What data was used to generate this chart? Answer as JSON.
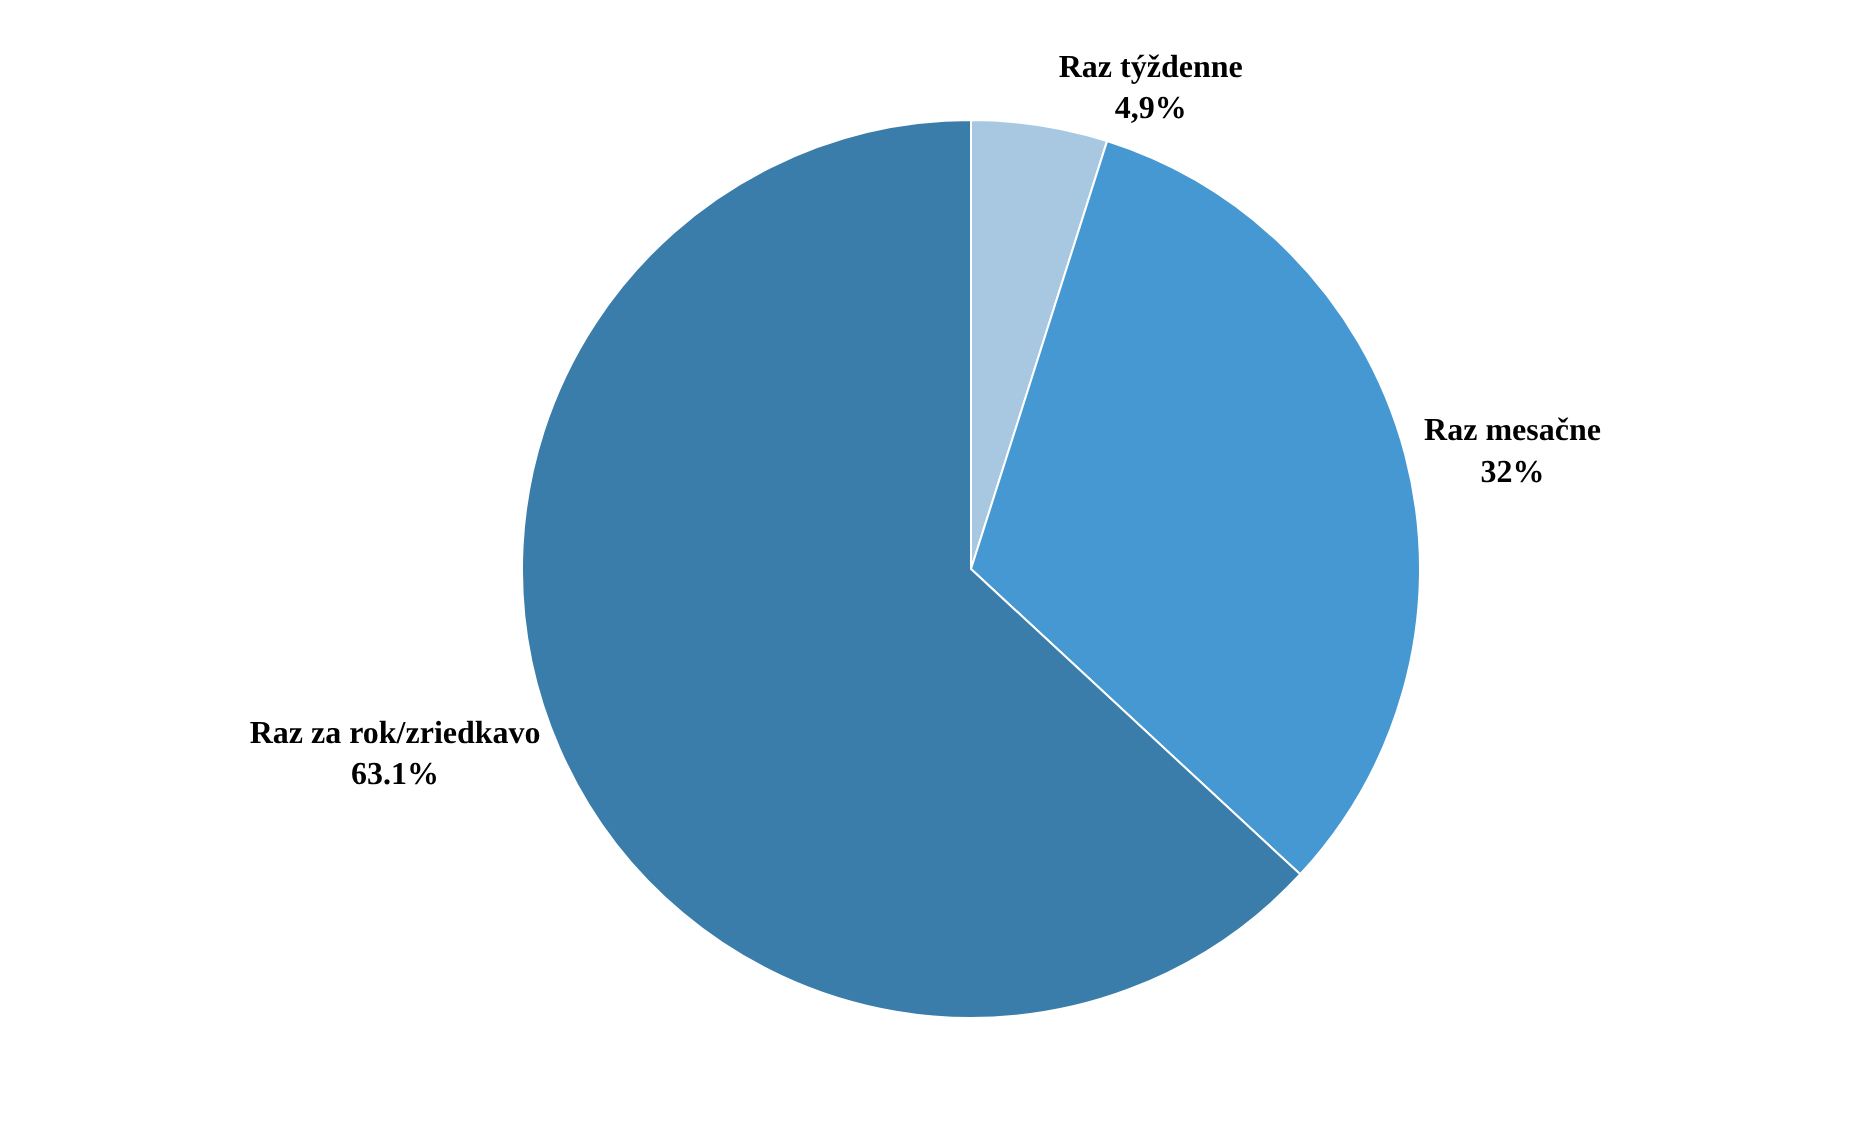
{
  "chart_data": {
    "type": "pie",
    "categories": [
      "Raz týždenne",
      "Raz mesačne",
      "Raz za rok/zriedkavo"
    ],
    "values": [
      4.9,
      32,
      63.1
    ],
    "value_labels": [
      "4,9%",
      "32%",
      "63.1%"
    ],
    "colors": [
      "#a8c8e2",
      "#4598d2",
      "#3a7dab"
    ],
    "legend": false
  }
}
